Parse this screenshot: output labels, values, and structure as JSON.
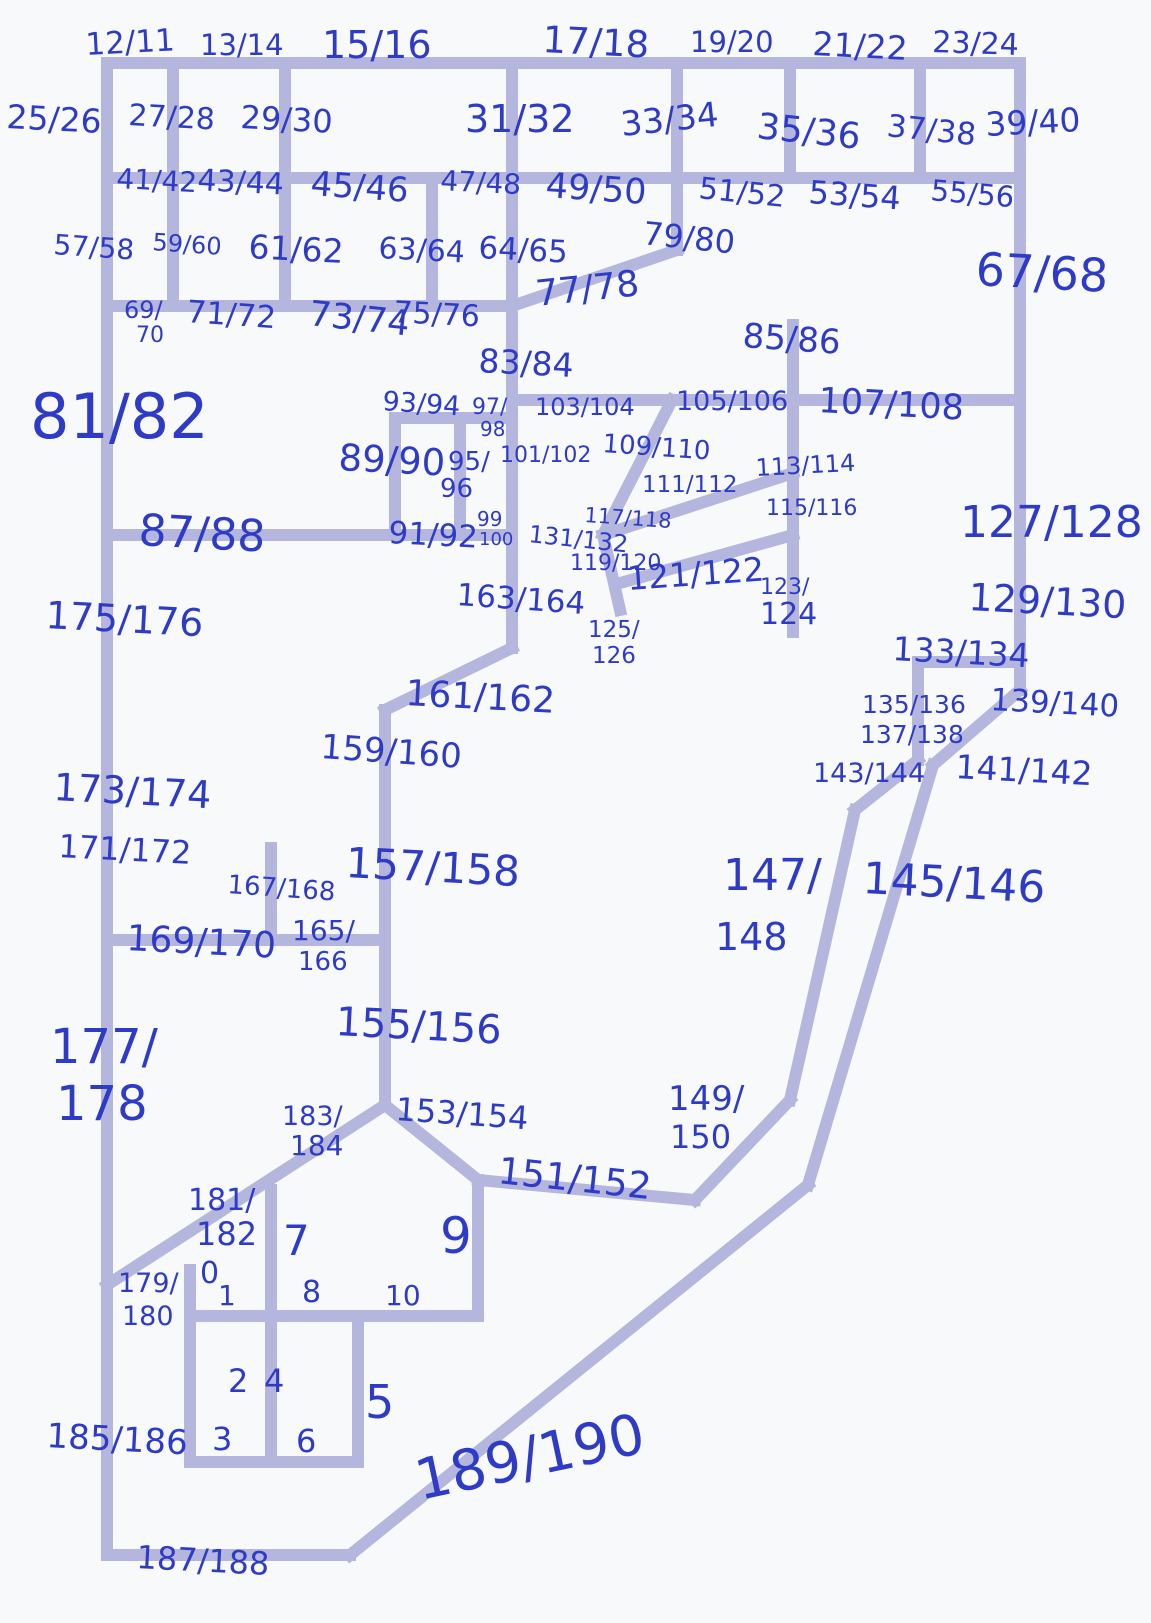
{
  "title": "",
  "labels": {
    "l_12_11": "12/11",
    "l_13_14": "13/14",
    "l_15_16": "15/16",
    "l_17_18": "17/18",
    "l_19_20": "19/20",
    "l_21_22": "21/22",
    "l_23_24": "23/24",
    "l_25_26": "25/26",
    "l_27_28": "27/28",
    "l_29_30": "29/30",
    "l_31_32": "31/32",
    "l_33_34": "33/34",
    "l_35_36": "35/36",
    "l_37_38": "37/38",
    "l_39_40": "39/40",
    "l_41_42": "41/42",
    "l_43_44": "43/44",
    "l_45_46": "45/46",
    "l_47_48": "47/48",
    "l_49_50": "49/50",
    "l_51_52": "51/52",
    "l_53_54": "53/54",
    "l_55_56": "55/56",
    "l_57_58": "57/58",
    "l_59_60": "59/60",
    "l_61_62": "61/62",
    "l_63_64": "63/64",
    "l_64_65": "64/65",
    "l_79_80": "79/80",
    "l_67_68": "67/68",
    "l_69_70_a": "69/",
    "l_69_70_b": "70",
    "l_71_72": "71/72",
    "l_73_74": "73/74",
    "l_75_76": "75/76",
    "l_77_78": "77/78",
    "l_85_86": "85/86",
    "l_83_84": "83/84",
    "l_81_82": "81/82",
    "l_93_94": "93/94",
    "l_97_98_a": "97/",
    "l_97_98_b": "98",
    "l_103_104": "103/104",
    "l_105_106": "105/106",
    "l_107_108": "107/108",
    "l_89_90": "89/90",
    "l_95_96_a": "95/",
    "l_95_96_b": "96",
    "l_101_102": "101/102",
    "l_109_110": "109/110",
    "l_111_112": "111/112",
    "l_113_114": "113/114",
    "l_115_116": "115/116",
    "l_87_88": "87/88",
    "l_91_92": "91/92",
    "l_99_100_a": "99",
    "l_99_100_b": "100",
    "l_131_132": "131/132",
    "l_117_118": "117/118",
    "l_127_128": "127/128",
    "l_119_120": "119/120",
    "l_121_122": "121/122",
    "l_123_124_a": "123/",
    "l_123_124_b": "124",
    "l_163_164": "163/164",
    "l_175_176": "175/176",
    "l_129_130": "129/130",
    "l_125_126_a": "125/",
    "l_125_126_b": "126",
    "l_133_134": "133/134",
    "l_161_162": "161/162",
    "l_135_136": "135/136",
    "l_139_140": "139/140",
    "l_137_138": "137/138",
    "l_159_160": "159/160",
    "l_143_144": "143/144",
    "l_141_142": "141/142",
    "l_173_174": "173/174",
    "l_171_172": "171/172",
    "l_157_158": "157/158",
    "l_167_168": "167/168",
    "l_147_148_a": "147/",
    "l_147_148_b": "148",
    "l_145_146": "145/146",
    "l_169_170": "169/170",
    "l_165_166_a": "165/",
    "l_165_166_b": "166",
    "l_155_156": "155/156",
    "l_177_178_a": "177/",
    "l_177_178_b": "178",
    "l_149_150_a": "149/",
    "l_149_150_b": "150",
    "l_183_184_a": "183/",
    "l_183_184_b": "184",
    "l_153_154": "153/154",
    "l_151_152": "151/152",
    "l_181_182_a": "181/",
    "l_181_182_b": "182",
    "l_7": "7",
    "l_9": "9",
    "l_179_180_a": "179/",
    "l_179_180_b": "180",
    "l_0": "0",
    "l_1": "1",
    "l_8": "8",
    "l_10": "10",
    "l_2": "2",
    "l_4": "4",
    "l_5": "5",
    "l_185_186": "185/186",
    "l_3": "3",
    "l_6": "6",
    "l_189_190": "189/190",
    "l_187_188": "187/188"
  }
}
